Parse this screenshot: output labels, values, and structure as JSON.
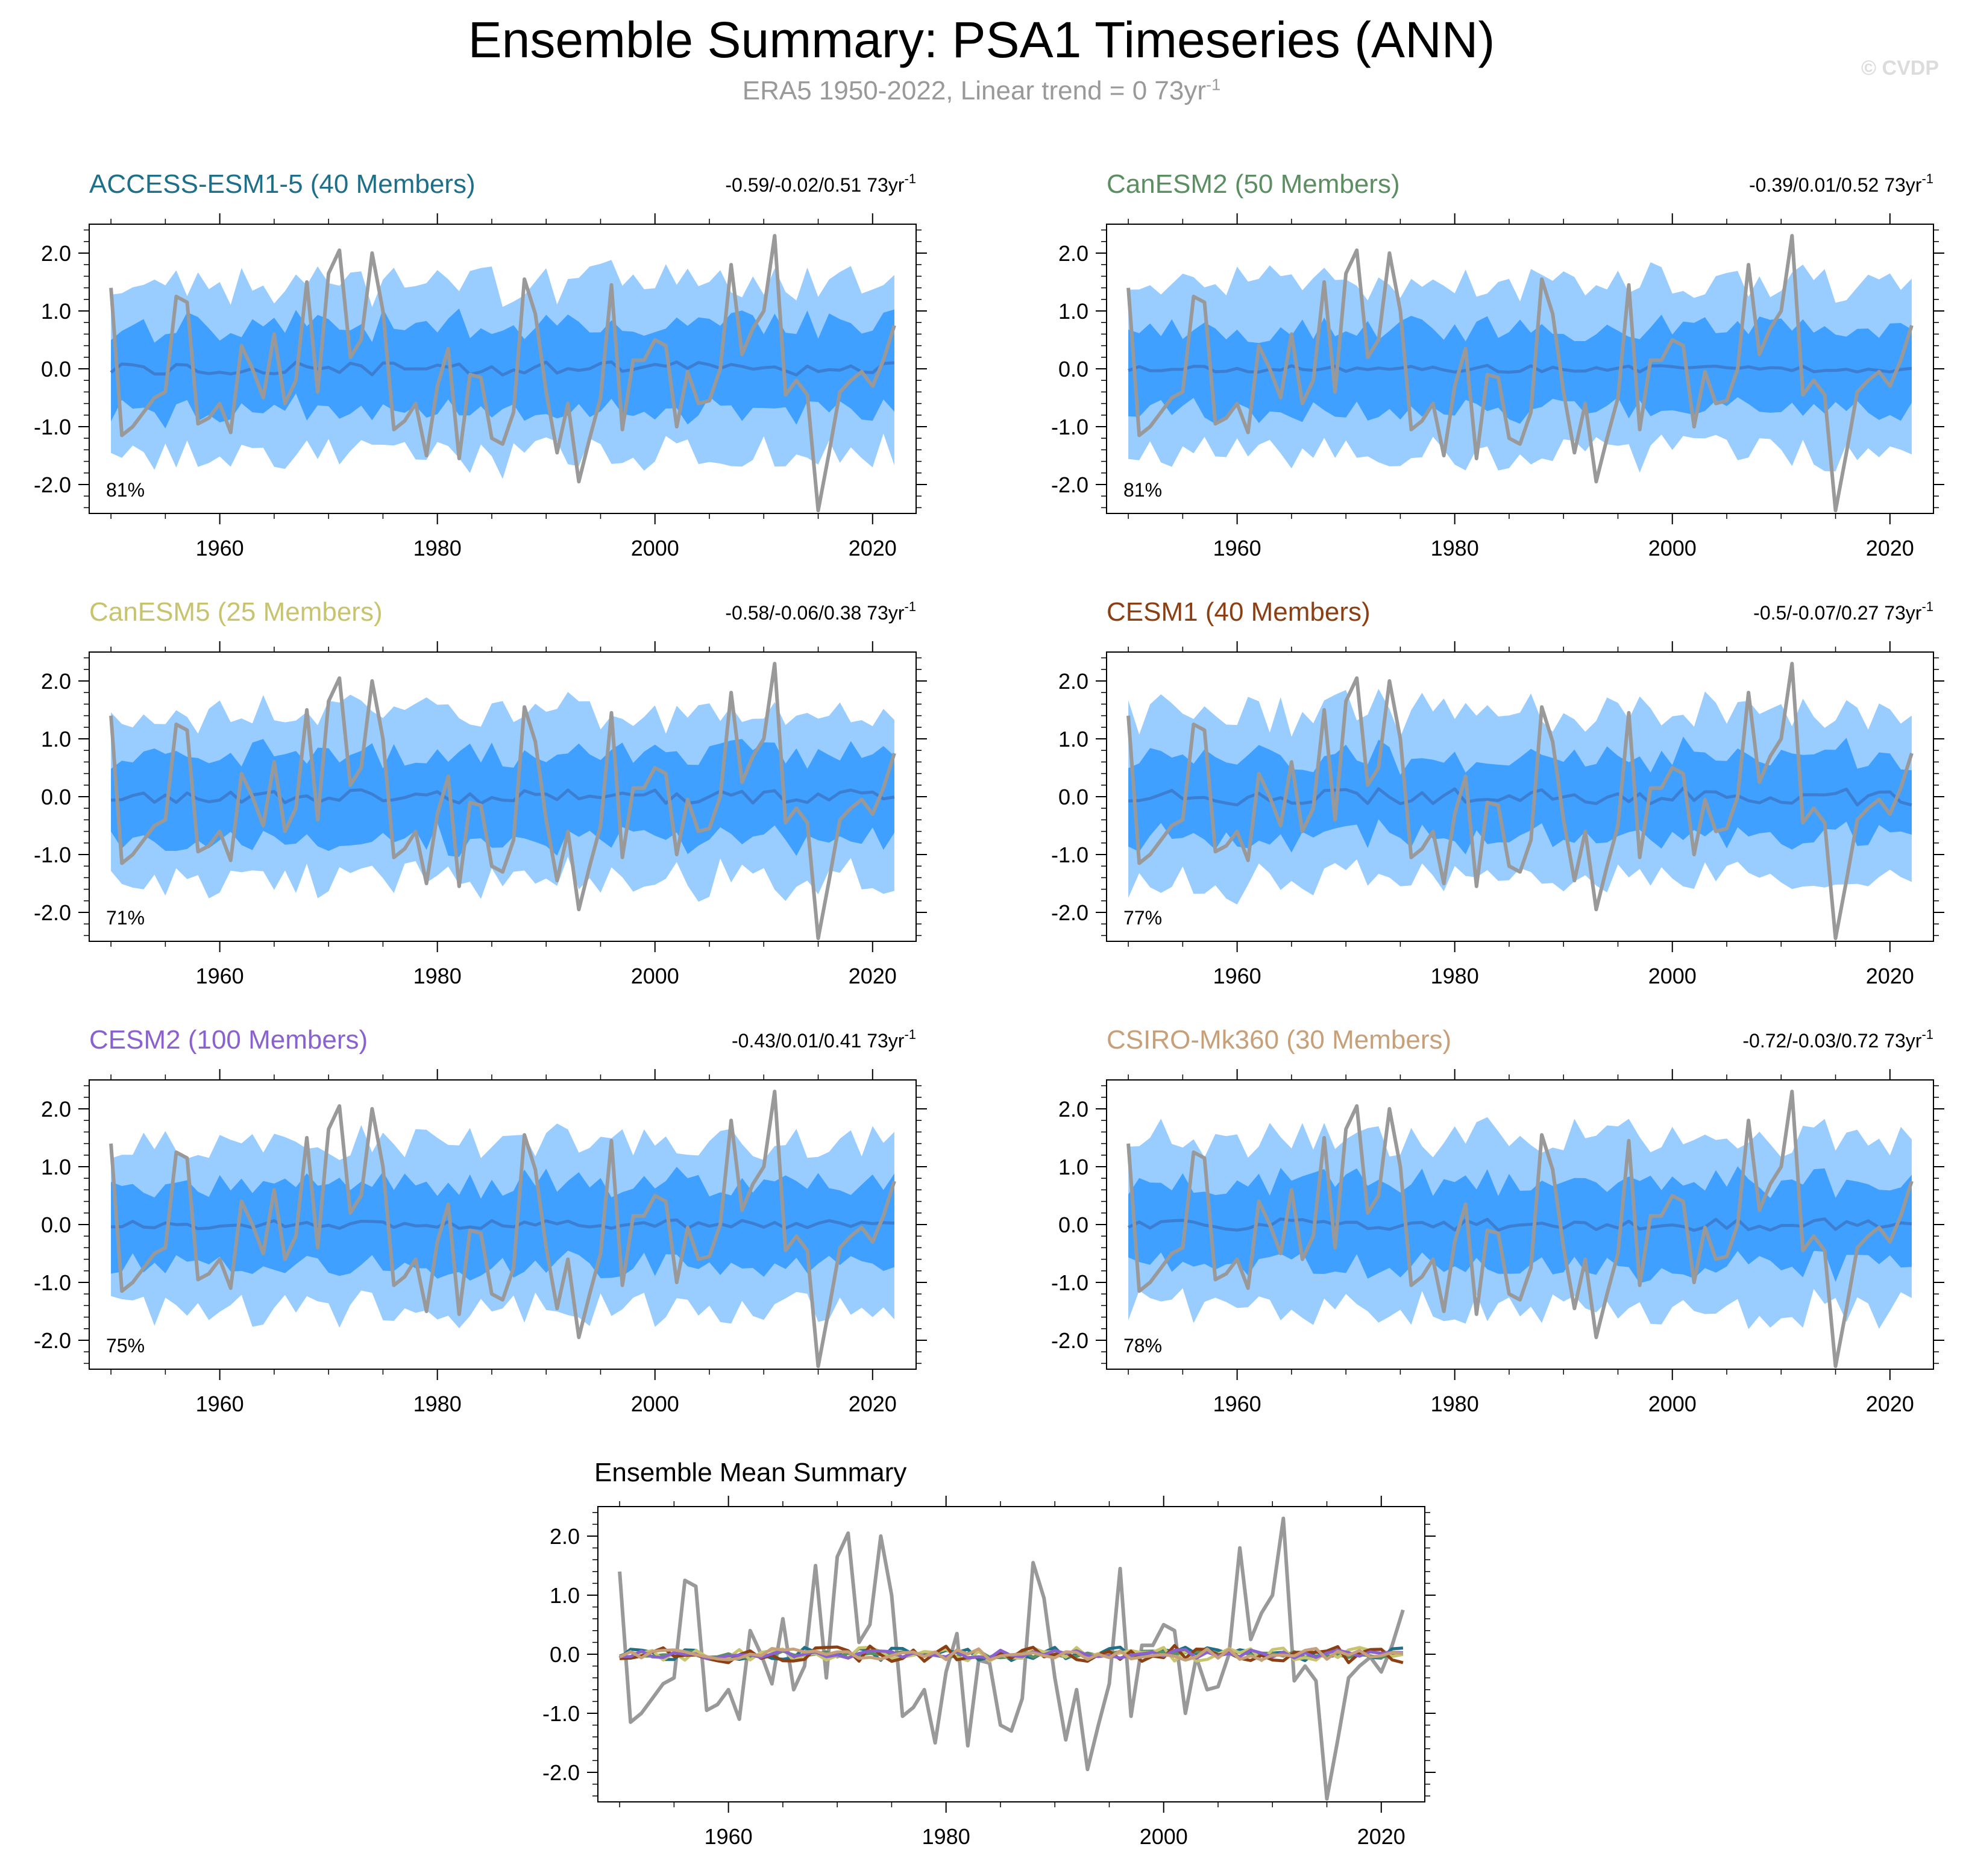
{
  "title": "Ensemble Summary: PSA1 Timeseries (ANN)",
  "subtitle": {
    "text": "ERA5 1950-2022, Linear trend = 0 73yr",
    "superscript": "-1"
  },
  "copyright": "© CVDP",
  "mean_summary_title": "Ensemble Mean Summary",
  "trend_unit": "73yr",
  "trend_unit_superscript": "-1",
  "colors": {
    "band_outer": "#99ccff",
    "band_inner": "#3fa0ff",
    "ensemble_mean": "#3c7fd2",
    "observed": "#999999"
  },
  "chart_data": {
    "type": "line",
    "x_range": [
      1948,
      2024
    ],
    "ylim": [
      -2.5,
      2.5
    ],
    "x_ticks": [
      1960,
      1980,
      2000,
      2020
    ],
    "y_ticks": [
      -2.0,
      -1.0,
      0.0,
      1.0,
      2.0
    ],
    "y_tick_labels": [
      "-2.0",
      "-1.0",
      "0.0",
      "1.0",
      "2.0"
    ],
    "years": [
      1950,
      1951,
      1952,
      1953,
      1954,
      1955,
      1956,
      1957,
      1958,
      1959,
      1960,
      1961,
      1962,
      1963,
      1964,
      1965,
      1966,
      1967,
      1968,
      1969,
      1970,
      1971,
      1972,
      1973,
      1974,
      1975,
      1976,
      1977,
      1978,
      1979,
      1980,
      1981,
      1982,
      1983,
      1984,
      1985,
      1986,
      1987,
      1988,
      1989,
      1990,
      1991,
      1992,
      1993,
      1994,
      1995,
      1996,
      1997,
      1998,
      1999,
      2000,
      2001,
      2002,
      2003,
      2004,
      2005,
      2006,
      2007,
      2008,
      2009,
      2010,
      2011,
      2012,
      2013,
      2014,
      2015,
      2016,
      2017,
      2018,
      2019,
      2020,
      2021,
      2022
    ],
    "observed": [
      1.4,
      -1.15,
      -1.0,
      -0.75,
      -0.5,
      -0.4,
      1.25,
      1.15,
      -0.95,
      -0.85,
      -0.6,
      -1.1,
      0.4,
      0.0,
      -0.5,
      0.6,
      -0.6,
      -0.2,
      1.5,
      -0.4,
      1.65,
      2.05,
      0.2,
      0.5,
      2.0,
      1.0,
      -1.05,
      -0.9,
      -0.6,
      -1.5,
      -0.3,
      0.35,
      -1.55,
      -0.1,
      -0.15,
      -1.2,
      -1.3,
      -0.75,
      1.55,
      0.95,
      -0.4,
      -1.45,
      -0.6,
      -1.95,
      -1.2,
      -0.5,
      1.45,
      -1.05,
      0.15,
      0.15,
      0.5,
      0.4,
      -1.0,
      -0.05,
      -0.6,
      -0.55,
      0.0,
      1.8,
      0.25,
      0.7,
      1.0,
      2.3,
      -0.45,
      -0.2,
      -0.45,
      -2.45,
      -1.45,
      -0.4,
      -0.2,
      -0.05,
      -0.3,
      0.15,
      0.75
    ],
    "panels": [
      {
        "model": "ACCESS-ESM1-5",
        "members_label": "(40 Members)",
        "color": "#1d6f8a",
        "trend": "-0.59/-0.02/0.51",
        "percent": "81%",
        "outer_amp": 1.5,
        "inner_amp": 0.75,
        "mean_amp": 0.12,
        "seed": 11
      },
      {
        "model": "CanESM2",
        "members_label": "(50 Members)",
        "color": "#5b8f62",
        "trend": "-0.39/0.01/0.52",
        "percent": "81%",
        "outer_amp": 1.5,
        "inner_amp": 0.7,
        "mean_amp": 0.06,
        "seed": 23
      },
      {
        "model": "CanESM5",
        "members_label": "(25 Members)",
        "color": "#c8c46e",
        "trend": "-0.58/-0.06/0.38",
        "percent": "71%",
        "outer_amp": 1.45,
        "inner_amp": 0.75,
        "mean_amp": 0.12,
        "seed": 37
      },
      {
        "model": "CESM1",
        "members_label": "(40 Members)",
        "color": "#8b3f12",
        "trend": "-0.5/-0.07/0.27",
        "percent": "77%",
        "outer_amp": 1.45,
        "inner_amp": 0.7,
        "mean_amp": 0.15,
        "seed": 41
      },
      {
        "model": "CESM2",
        "members_label": "(100 Members)",
        "color": "#8a62cf",
        "trend": "-0.43/0.01/0.41",
        "percent": "75%",
        "outer_amp": 1.45,
        "inner_amp": 0.72,
        "mean_amp": 0.08,
        "seed": 53
      },
      {
        "model": "CSIRO-Mk360",
        "members_label": "(30 Members)",
        "color": "#c7a07a",
        "trend": "-0.72/-0.03/0.72",
        "percent": "78%",
        "outer_amp": 1.5,
        "inner_amp": 0.72,
        "mean_amp": 0.1,
        "seed": 67
      }
    ]
  }
}
